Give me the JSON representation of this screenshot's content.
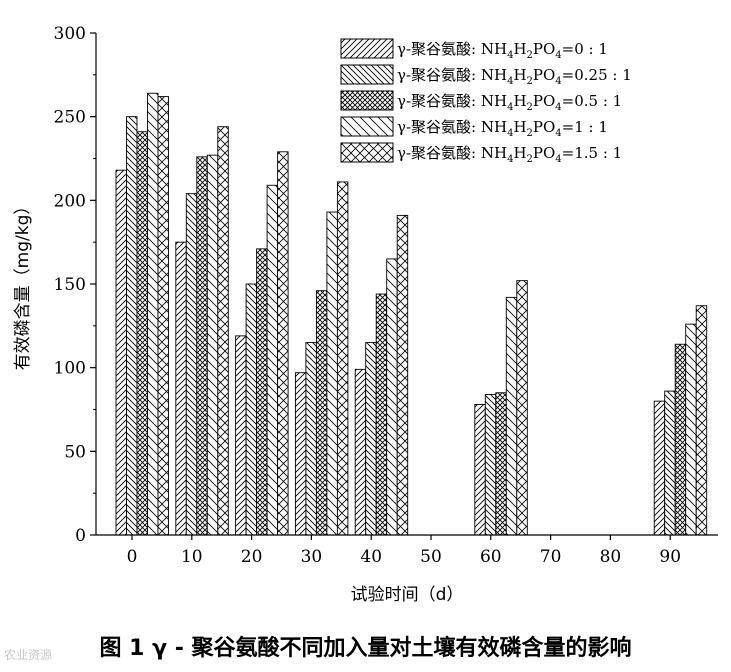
{
  "caption": "图 1   γ - 聚谷氨酸不同加入量对土壤有效磷含量的影响",
  "watermark": "农业资源",
  "chart_data": {
    "type": "bar",
    "xlabel": "试验时间（d）",
    "ylabel": "有效磷含量（mg/kg）",
    "ylim": [
      0,
      300
    ],
    "yticks": [
      0,
      50,
      100,
      150,
      200,
      250,
      300
    ],
    "categories": [
      "0",
      "10",
      "20",
      "30",
      "40",
      "50",
      "60",
      "70",
      "80",
      "90"
    ],
    "legend_position": "top-right",
    "series": [
      {
        "name": "γ-聚谷氨酸: NH4H2PO4=0 : 1",
        "label_parts": [
          "γ-聚谷氨酸: NH",
          "4",
          "H",
          "2",
          "PO",
          "4",
          "=0 : 1"
        ],
        "pattern": "diag-right",
        "values": [
          218,
          175,
          119,
          97,
          99,
          null,
          78,
          null,
          null,
          80
        ]
      },
      {
        "name": "γ-聚谷氨酸: NH4H2PO4=0.25 : 1",
        "label_parts": [
          "γ-聚谷氨酸: NH",
          "4",
          "H",
          "2",
          "PO",
          "4",
          "=0.25 : 1"
        ],
        "pattern": "diag-left",
        "values": [
          250,
          204,
          150,
          115,
          115,
          null,
          84,
          null,
          null,
          86
        ]
      },
      {
        "name": "γ-聚谷氨酸: NH4H2PO4=0.5 : 1",
        "label_parts": [
          "γ-聚谷氨酸: NH",
          "4",
          "H",
          "2",
          "PO",
          "4",
          "=0.5 : 1"
        ],
        "pattern": "cross-dense",
        "values": [
          241,
          226,
          171,
          146,
          144,
          null,
          85,
          null,
          null,
          114
        ]
      },
      {
        "name": "γ-聚谷氨酸: NH4H2PO4=1 : 1",
        "label_parts": [
          "γ-聚谷氨酸: NH",
          "4",
          "H",
          "2",
          "PO",
          "4",
          "=1 : 1"
        ],
        "pattern": "diag-left-sparse",
        "values": [
          264,
          227,
          209,
          193,
          165,
          null,
          142,
          null,
          null,
          126
        ]
      },
      {
        "name": "γ-聚谷氨酸: NH4H2PO4=1.5 : 1",
        "label_parts": [
          "γ-聚谷氨酸: NH",
          "4",
          "H",
          "2",
          "PO",
          "4",
          "=1.5 : 1"
        ],
        "pattern": "cross-sparse",
        "values": [
          262,
          244,
          229,
          211,
          191,
          null,
          152,
          null,
          null,
          137
        ]
      }
    ]
  }
}
